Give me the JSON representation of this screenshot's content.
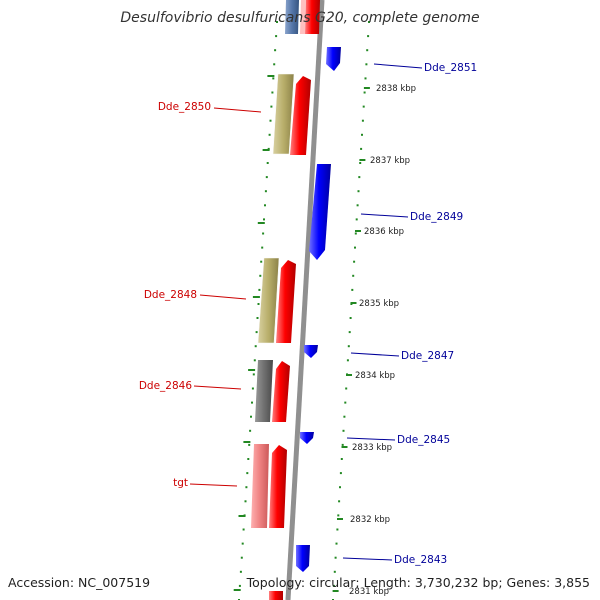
{
  "title": "Desulfovibrio desulfuricans G20, complete genome",
  "footer": {
    "accession": "Accession: NC_007519",
    "topology": "Topology: circular; Length: 3,730,232 bp; Genes: 3,855"
  },
  "colors": {
    "backbone": "#909090",
    "forward_cds": "#ff0000",
    "reverse_cds": "#0000ff",
    "gene_khaki": "#b8ae6a",
    "gene_gray": "#707070",
    "gene_pink": "#ee8080",
    "gene_steelblue": "#5577aa",
    "left_label": "#cc0000",
    "right_label": "#000099",
    "tick_marks": "#228822"
  },
  "left_labels": [
    "Dde_2850",
    "Dde_2848",
    "Dde_2846",
    "tgt"
  ],
  "right_labels": [
    "Dde_2851",
    "Dde_2849",
    "Dde_2847",
    "Dde_2845",
    "Dde_2843"
  ],
  "scale_ticks": [
    "2838 kbp",
    "2837 kbp",
    "2836 kbp",
    "2835 kbp",
    "2834 kbp",
    "2833 kbp",
    "2832 kbp",
    "2831 kbp"
  ]
}
